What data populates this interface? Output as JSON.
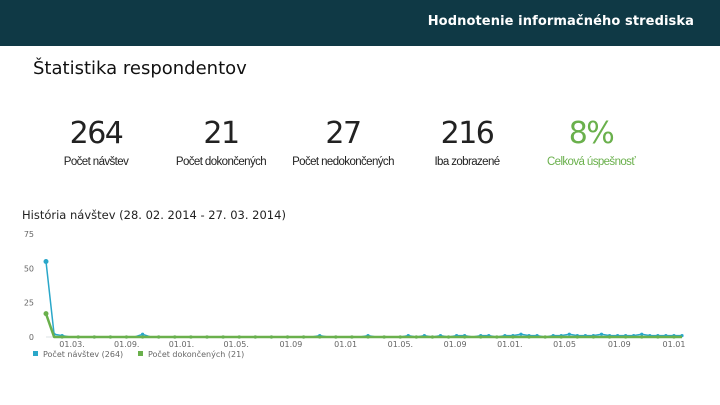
{
  "header": {
    "title": "Hodnotenie informačného strediska"
  },
  "section": {
    "title": "Štatistika respondentov"
  },
  "stats": [
    {
      "value": "264",
      "label": "Počet návštev"
    },
    {
      "value": "21",
      "label": "Počet dokončených"
    },
    {
      "value": "27",
      "label": "Počet nedokončených"
    },
    {
      "value": "216",
      "label": "Iba zobrazené"
    },
    {
      "value": "8%",
      "label": "Celková úspešnosť"
    }
  ],
  "colors": {
    "header_bg": "#0f3945",
    "accent_green": "#6ab04c",
    "series_blue": "#2aa7c9"
  },
  "history": {
    "title": "História návštev (28. 02. 2014 - 27. 03. 2014)"
  },
  "chart_data": {
    "type": "line",
    "ylim": [
      0,
      75
    ],
    "yticks": [
      "75",
      "50",
      "25",
      "0"
    ],
    "x_ticks": [
      "01.03.",
      "01.09.",
      "01.01.",
      "01.05.",
      "01.09",
      "01.01",
      "01.05.",
      "01.09",
      "01.01.",
      "01.05",
      "01.09",
      "01.01"
    ],
    "legend_position": "bottom-left",
    "series": [
      {
        "name": "Počet návštev (264)",
        "color": "#2aa7c9",
        "values": [
          55,
          2,
          1,
          0,
          0,
          0,
          0,
          0,
          0,
          0,
          0,
          0,
          2,
          0,
          0,
          0,
          0,
          0,
          0,
          0,
          0,
          0,
          0,
          0,
          0,
          0,
          0,
          0,
          0,
          0,
          0,
          0,
          0,
          0,
          1,
          0,
          0,
          0,
          0,
          0,
          1,
          0,
          0,
          0,
          0,
          1,
          0,
          1,
          0,
          1,
          0,
          1,
          1,
          0,
          1,
          1,
          0,
          1,
          1,
          2,
          1,
          1,
          0,
          1,
          1,
          2,
          1,
          1,
          1,
          2,
          1,
          1,
          1,
          1,
          2,
          1,
          1,
          1,
          1,
          1
        ]
      },
      {
        "name": "Počet dokončených (21)",
        "color": "#6ab04c",
        "values": [
          17,
          0,
          0,
          0,
          0,
          0,
          0,
          0,
          0,
          0,
          0,
          0,
          0,
          0,
          0,
          0,
          0,
          0,
          0,
          0,
          0,
          0,
          0,
          0,
          0,
          0,
          0,
          0,
          0,
          0,
          0,
          0,
          0,
          0,
          0,
          0,
          0,
          0,
          0,
          0,
          0,
          0,
          0,
          0,
          0,
          0,
          0,
          0,
          0,
          0,
          0,
          0,
          0,
          0,
          0,
          0,
          0,
          0,
          0,
          0,
          0,
          0,
          0,
          0,
          0,
          0,
          0,
          0,
          0,
          0,
          0,
          0,
          0,
          0,
          0,
          0,
          0,
          0,
          0,
          0
        ]
      }
    ]
  }
}
